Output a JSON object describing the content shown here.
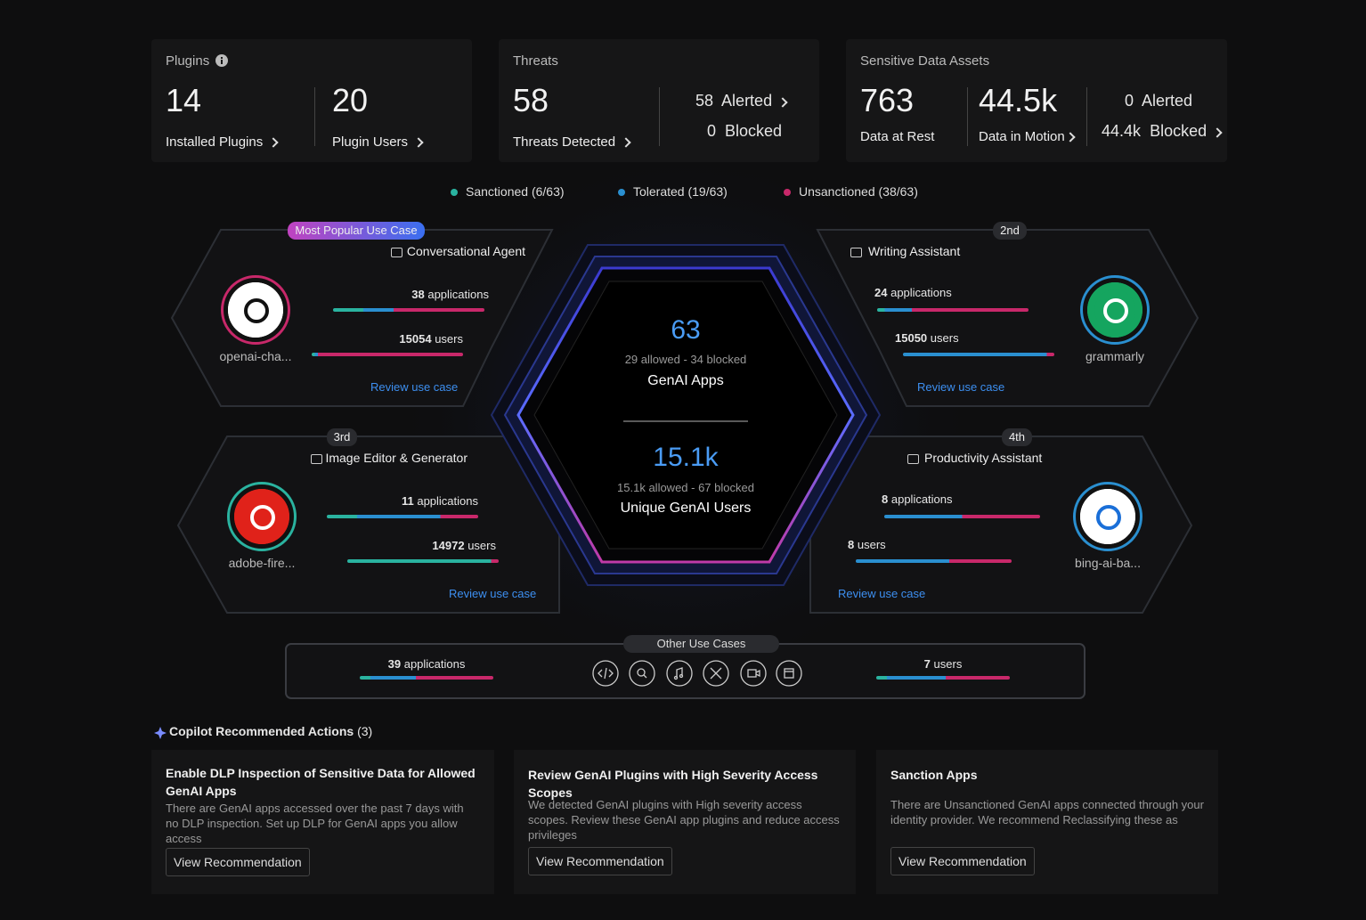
{
  "plugins": {
    "title": "Plugins",
    "installed": {
      "value": "14",
      "label": "Installed Plugins"
    },
    "users": {
      "value": "20",
      "label": "Plugin Users"
    }
  },
  "threats": {
    "title": "Threats",
    "detected": {
      "value": "58",
      "label": "Threats Detected"
    },
    "alerted": {
      "value": "58",
      "label": "Alerted"
    },
    "blocked": {
      "value": "0",
      "label": "Blocked"
    }
  },
  "sensitive": {
    "title": "Sensitive Data Assets",
    "rest": {
      "value": "763",
      "label": "Data at Rest"
    },
    "motion": {
      "value": "44.5k",
      "label": "Data in Motion"
    },
    "alerted": {
      "value": "0",
      "label": "Alerted"
    },
    "blocked": {
      "value": "44.4k",
      "label": "Blocked"
    }
  },
  "legend": [
    "Sanctioned (6/63)",
    "Tolerated (19/63)",
    "Unsanctioned (38/63)"
  ],
  "center": {
    "apps": {
      "value": "63",
      "detail": "29 allowed - 34 blocked",
      "label": "GenAI Apps"
    },
    "users": {
      "value": "15.1k",
      "detail": "15.1k allowed - 67 blocked",
      "label": "Unique GenAI Users"
    }
  },
  "use_cases": [
    {
      "badge": "Most Popular Use Case",
      "title": "Conversational Agent",
      "applications": "38",
      "applications_label": "applications",
      "users": "15054",
      "users_label": "users",
      "app": "openai-cha...",
      "link": "Review use case"
    },
    {
      "badge": "2nd",
      "title": "Writing Assistant",
      "applications": "24",
      "applications_label": "applications",
      "users": "15050",
      "users_label": "users",
      "app": "grammarly",
      "link": "Review use case"
    },
    {
      "badge": "3rd",
      "title": "Image Editor & Generator",
      "applications": "11",
      "applications_label": "applications",
      "users": "14972",
      "users_label": "users",
      "app": "adobe-fire...",
      "link": "Review use case"
    },
    {
      "badge": "4th",
      "title": "Productivity Assistant",
      "applications": "8",
      "applications_label": "applications",
      "users": "8",
      "users_label": "users",
      "app": "bing-ai-ba...",
      "link": "Review use case"
    }
  ],
  "other": {
    "title": "Other Use Cases",
    "applications": "39",
    "applications_label": "applications",
    "users": "7",
    "users_label": "users"
  },
  "copilot": {
    "title": "Copilot Recommended Actions",
    "count": "(3)",
    "cards": [
      {
        "title": "Enable DLP Inspection of Sensitive Data for Allowed GenAI Apps",
        "body": "There are GenAI apps accessed over the past 7 days with no DLP inspection. Set up DLP for GenAI apps you allow access",
        "button": "View Recommendation"
      },
      {
        "title": "Review GenAI Plugins with High Severity Access Scopes",
        "body": "We detected GenAI plugins with High severity access scopes. Review these GenAI app plugins and reduce access privileges",
        "button": "View Recommendation"
      },
      {
        "title": "Sanction Apps",
        "body": "There are Unsanctioned GenAI apps connected through your identity provider. We recommend Reclassifying these as",
        "button": "View Recommendation"
      }
    ]
  }
}
